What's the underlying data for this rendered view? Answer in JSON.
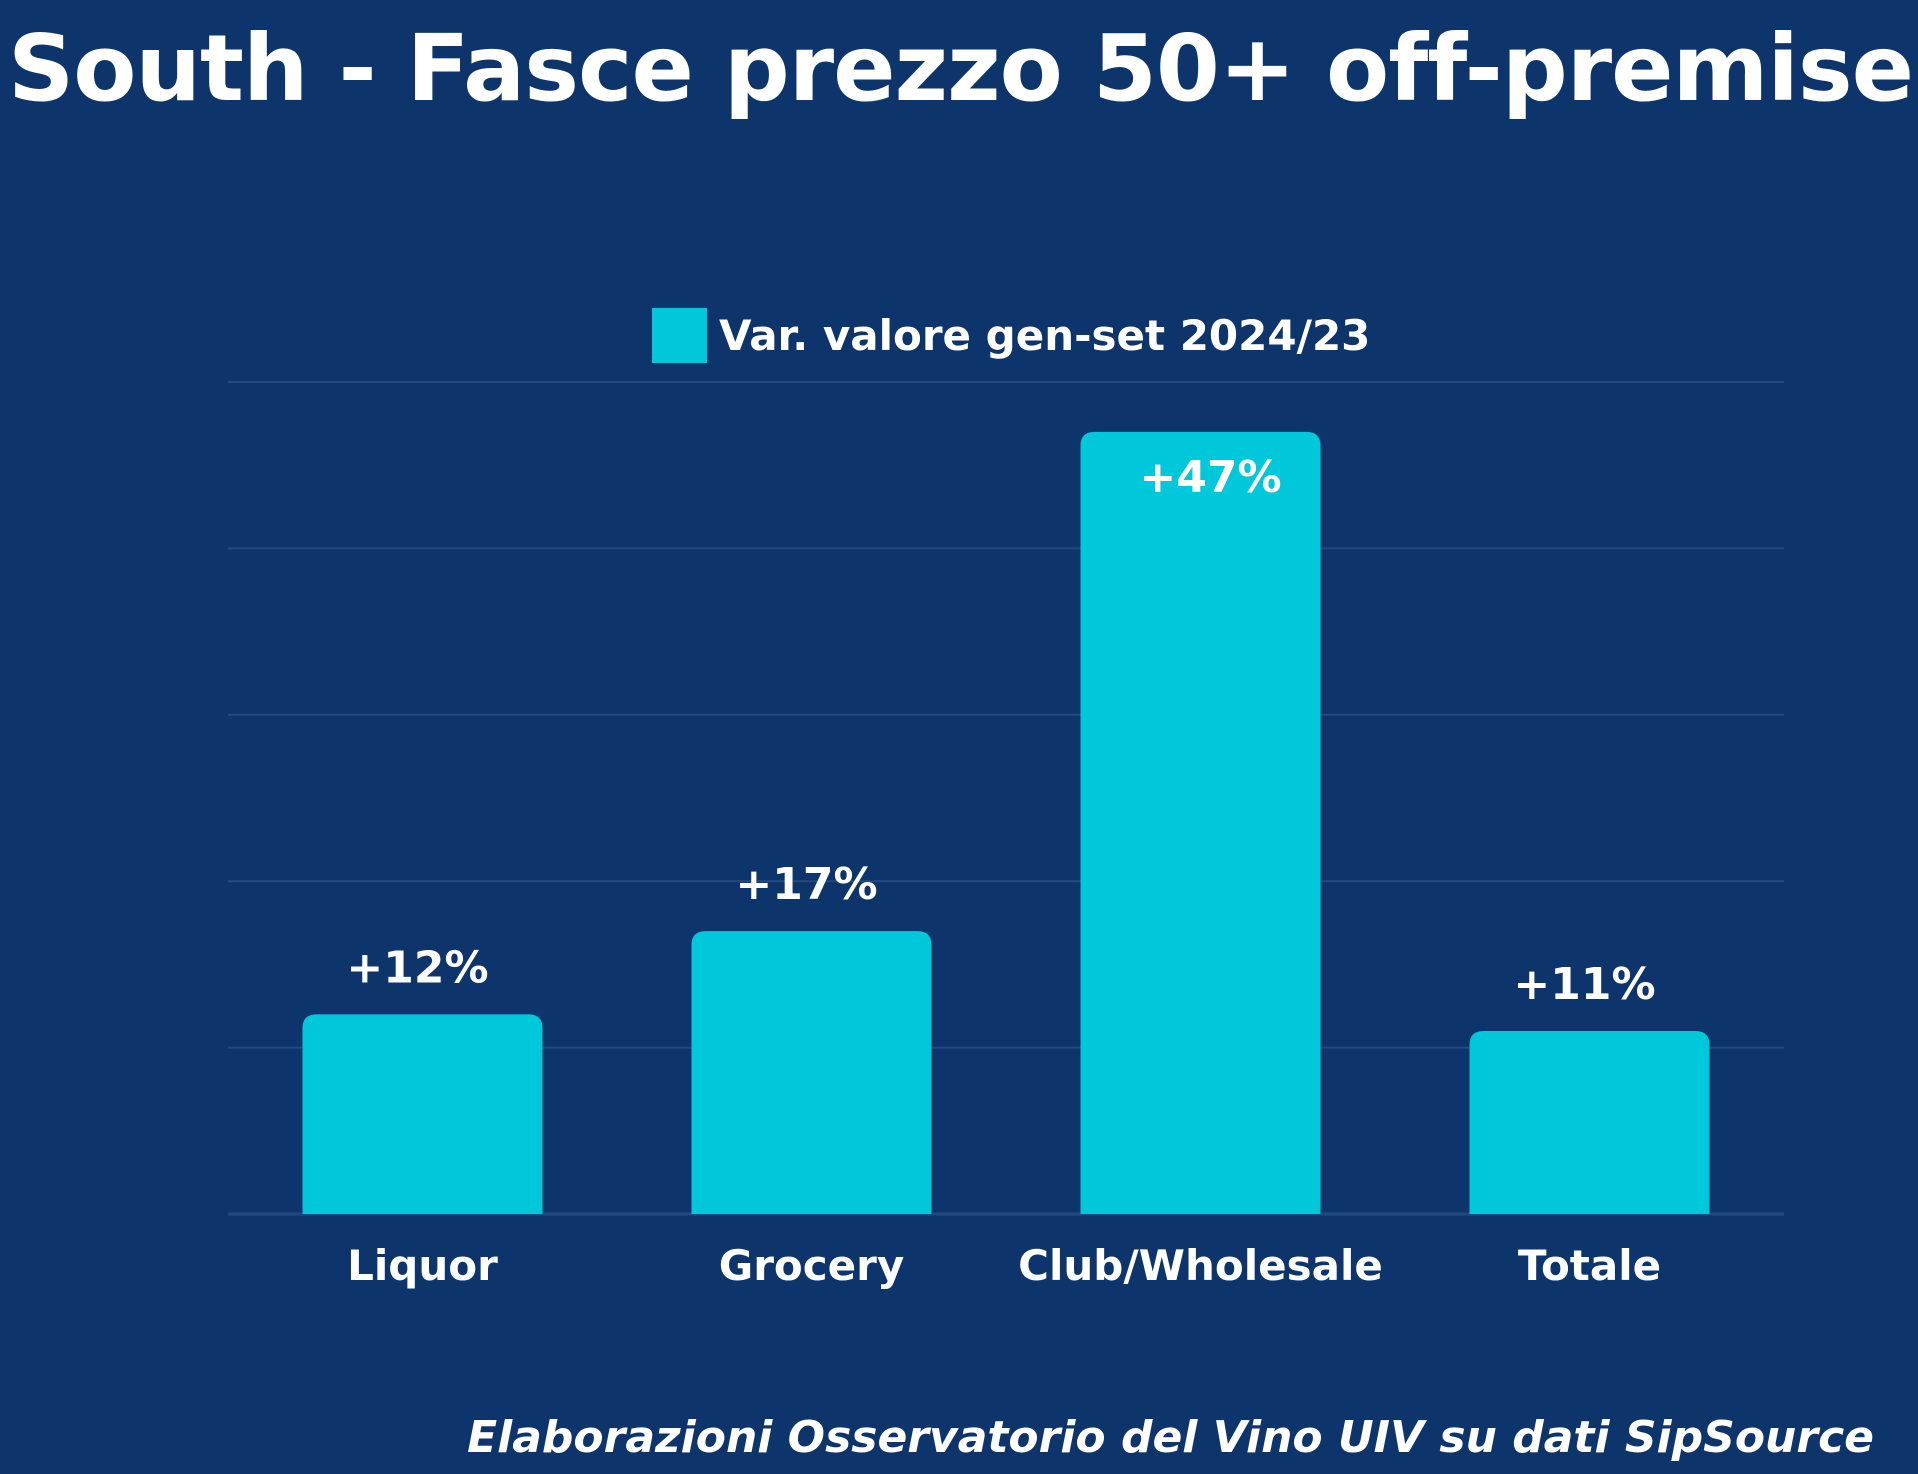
{
  "chart_data": {
    "type": "bar",
    "title": "South - Fasce prezzo 50+ off-premise",
    "categories": [
      "Liquor",
      "Grocery",
      "Club/Wholesale",
      "Totale"
    ],
    "series": [
      {
        "name": "Var. valore gen-set 2024/23",
        "values": [
          12,
          17,
          47,
          11
        ],
        "labels": [
          "+12%",
          "+17%",
          "+47%",
          "+11%"
        ],
        "color": "#00c8db"
      }
    ],
    "ylim": [
      0,
      50
    ],
    "grid": true,
    "legend": "top-center",
    "xlabel": "",
    "ylabel": ""
  },
  "source": "Elaborazioni Osservatorio del Vino UIV su dati SipSource",
  "colors": {
    "background": "#0d356c",
    "bar": "#00c8db",
    "gridline": "#234a80",
    "text": "#ffffff"
  }
}
